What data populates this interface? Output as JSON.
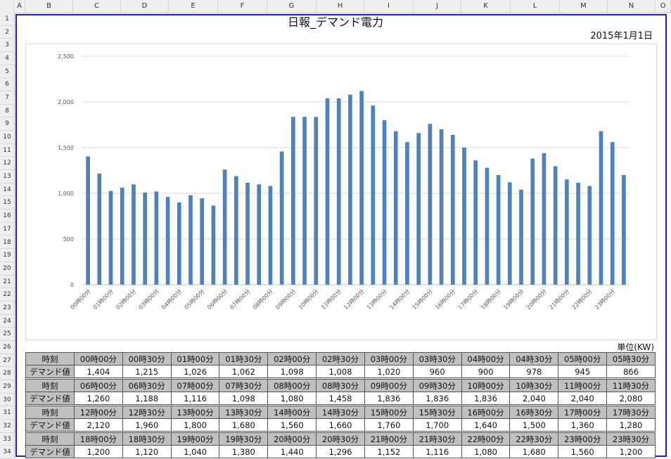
{
  "columns": [
    "A",
    "B",
    "C",
    "D",
    "E",
    "F",
    "G",
    "H",
    "I",
    "J",
    "K",
    "L",
    "M",
    "N",
    "O"
  ],
  "rows": [
    "1",
    "2",
    "3",
    "4",
    "5",
    "6",
    "7",
    "8",
    "9",
    "10",
    "11",
    "12",
    "13",
    "14",
    "15",
    "16",
    "17",
    "18",
    "19",
    "20",
    "21",
    "22",
    "23",
    "24",
    "25",
    "26",
    "27",
    "28",
    "29",
    "30",
    "31",
    "32",
    "33",
    "34"
  ],
  "title": "日報_デマンド電力",
  "date": "2015年1月1日",
  "unit_label": "単位(KW)",
  "row_labels": {
    "time": "時刻",
    "value": "デマンド値"
  },
  "chart_data": {
    "type": "bar",
    "title": "",
    "categories": [
      "00時00分",
      "00時30分",
      "01時00分",
      "01時30分",
      "02時00分",
      "02時30分",
      "03時00分",
      "03時30分",
      "04時00分",
      "04時30分",
      "05時00分",
      "05時30分",
      "06時00分",
      "06時30分",
      "07時00分",
      "07時30分",
      "08時00分",
      "08時30分",
      "09時00分",
      "09時30分",
      "10時00分",
      "10時30分",
      "11時00分",
      "11時30分",
      "12時00分",
      "12時30分",
      "13時00分",
      "13時30分",
      "14時00分",
      "14時30分",
      "15時00分",
      "15時30分",
      "16時00分",
      "16時30分",
      "17時00分",
      "17時30分",
      "18時00分",
      "18時30分",
      "19時00分",
      "19時30分",
      "20時00分",
      "20時30分",
      "21時00分",
      "21時30分",
      "22時00分",
      "22時30分",
      "23時00分",
      "23時30分"
    ],
    "tick_labels": [
      "00時00分",
      "01時00分",
      "02時00分",
      "03時00分",
      "04時00分",
      "05時00分",
      "06時00分",
      "07時00分",
      "08時00分",
      "09時00分",
      "10時00分",
      "11時00分",
      "12時00分",
      "13時00分",
      "14時00分",
      "15時00分",
      "16時00分",
      "17時00分",
      "18時00分",
      "19時00分",
      "20時00分",
      "21時00分",
      "22時00分",
      "23時00分"
    ],
    "values": [
      1404,
      1215,
      1026,
      1062,
      1098,
      1008,
      1020,
      960,
      900,
      978,
      945,
      866,
      1260,
      1188,
      1116,
      1098,
      1080,
      1458,
      1836,
      1836,
      1836,
      2040,
      2040,
      2080,
      2120,
      1960,
      1800,
      1680,
      1560,
      1660,
      1760,
      1700,
      1640,
      1500,
      1360,
      1280,
      1200,
      1120,
      1040,
      1380,
      1440,
      1296,
      1152,
      1116,
      1080,
      1680,
      1560,
      1200
    ],
    "ylim": [
      0,
      2500
    ],
    "yticks": [
      0,
      500,
      1000,
      1500,
      2000,
      2500
    ],
    "ytick_labels": [
      "0",
      "500",
      "1,000",
      "1,500",
      "2,000",
      "2,500"
    ],
    "grid": true,
    "color": "#4f81bd"
  },
  "table": [
    {
      "times": [
        "00時00分",
        "00時30分",
        "01時00分",
        "01時30分",
        "02時00分",
        "02時30分",
        "03時00分",
        "03時30分",
        "04時00分",
        "04時30分",
        "05時00分",
        "05時30分"
      ],
      "values": [
        "1,404",
        "1,215",
        "1,026",
        "1,062",
        "1,098",
        "1,008",
        "1,020",
        "960",
        "900",
        "978",
        "945",
        "866"
      ]
    },
    {
      "times": [
        "06時00分",
        "06時30分",
        "07時00分",
        "07時30分",
        "08時00分",
        "08時30分",
        "09時00分",
        "09時30分",
        "10時00分",
        "10時30分",
        "11時00分",
        "11時30分"
      ],
      "values": [
        "1,260",
        "1,188",
        "1,116",
        "1,098",
        "1,080",
        "1,458",
        "1,836",
        "1,836",
        "1,836",
        "2,040",
        "2,040",
        "2,080"
      ]
    },
    {
      "times": [
        "12時00分",
        "12時30分",
        "13時00分",
        "13時30分",
        "14時00分",
        "14時30分",
        "15時00分",
        "15時30分",
        "16時00分",
        "16時30分",
        "17時00分",
        "17時30分"
      ],
      "values": [
        "2,120",
        "1,960",
        "1,800",
        "1,680",
        "1,560",
        "1,660",
        "1,760",
        "1,700",
        "1,640",
        "1,500",
        "1,360",
        "1,280"
      ]
    },
    {
      "times": [
        "18時00分",
        "18時30分",
        "19時00分",
        "19時30分",
        "20時00分",
        "20時30分",
        "21時00分",
        "21時30分",
        "22時00分",
        "22時30分",
        "23時00分",
        "23時30分"
      ],
      "values": [
        "1,200",
        "1,120",
        "1,040",
        "1,380",
        "1,440",
        "1,296",
        "1,152",
        "1,116",
        "1,080",
        "1,680",
        "1,560",
        "1,200"
      ]
    }
  ]
}
